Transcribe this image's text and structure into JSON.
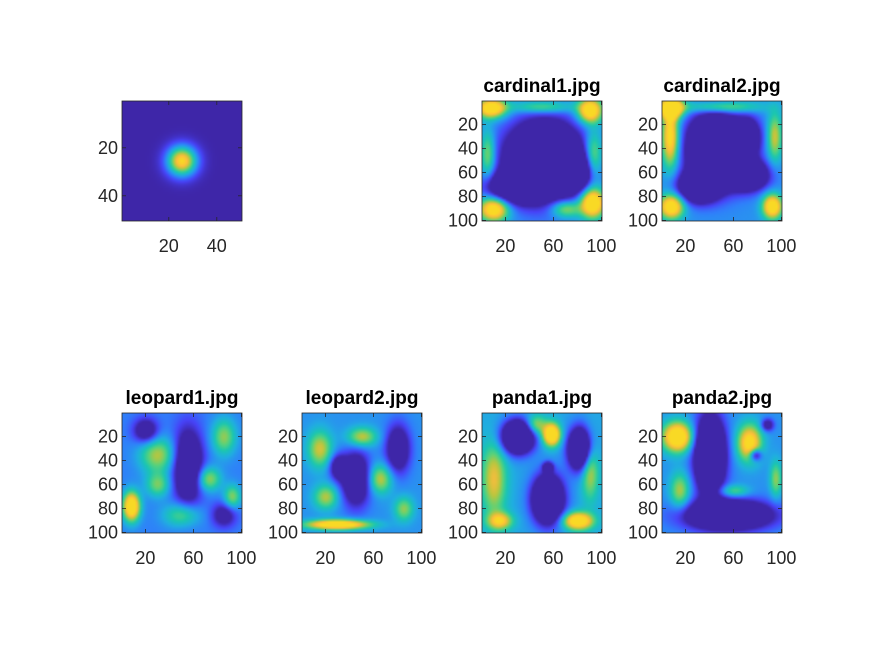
{
  "colormap": [
    "#3e26a8",
    "#4743f8",
    "#2f80fa",
    "#20aee0",
    "#1bc6b0",
    "#58d27b",
    "#b9c63f",
    "#fdbc3c",
    "#f9d925"
  ],
  "chart_data": [
    {
      "type": "heatmap",
      "title": "",
      "xlim": [
        0.5,
        50.5
      ],
      "ylim": [
        0.5,
        50.5
      ],
      "xticks": [
        20,
        40
      ],
      "yticks": [
        20,
        40
      ],
      "xticklabels": [
        "20",
        "40"
      ],
      "yticklabels": [
        "20",
        "40"
      ],
      "blobs": [
        [
          0.5,
          0.5,
          0.12,
          0.12,
          1.0
        ]
      ]
    },
    {
      "type": "heatmap",
      "title": "cardinal1.jpg",
      "xlim": [
        0.5,
        100.5
      ],
      "ylim": [
        0.5,
        100.5
      ],
      "xticks": [
        20,
        60,
        100
      ],
      "yticks": [
        20,
        40,
        60,
        80,
        100
      ],
      "xticklabels": [
        "20",
        "60",
        "100"
      ],
      "yticklabels": [
        "20",
        "40",
        "60",
        "80",
        "100"
      ],
      "blobs": [
        [
          0.08,
          0.06,
          0.12,
          0.08,
          0.9
        ],
        [
          0.9,
          0.08,
          0.1,
          0.1,
          0.9
        ],
        [
          0.92,
          0.85,
          0.1,
          0.12,
          1.0
        ],
        [
          0.1,
          0.9,
          0.12,
          0.1,
          0.9
        ],
        [
          0.7,
          0.9,
          0.12,
          0.07,
          0.5
        ],
        [
          0.93,
          0.45,
          0.07,
          0.2,
          0.5
        ],
        [
          0.05,
          0.45,
          0.06,
          0.2,
          0.45
        ],
        [
          0.5,
          0.05,
          0.25,
          0.05,
          0.4
        ]
      ],
      "holes": [
        [
          0.52,
          0.5,
          0.3,
          0.3,
          1.3
        ],
        [
          0.25,
          0.72,
          0.2,
          0.12,
          0.8
        ],
        [
          0.78,
          0.6,
          0.12,
          0.14,
          0.7
        ]
      ],
      "base": 0.3
    },
    {
      "type": "heatmap",
      "title": "cardinal2.jpg",
      "xlim": [
        0.5,
        100.5
      ],
      "ylim": [
        0.5,
        100.5
      ],
      "xticks": [
        20,
        60,
        100
      ],
      "yticks": [
        20,
        40,
        60,
        80,
        100
      ],
      "xticklabels": [
        "20",
        "60",
        "100"
      ],
      "yticklabels": [
        "20",
        "40",
        "60",
        "80",
        "100"
      ],
      "blobs": [
        [
          0.08,
          0.06,
          0.1,
          0.08,
          1.0
        ],
        [
          0.07,
          0.3,
          0.07,
          0.25,
          0.8
        ],
        [
          0.08,
          0.88,
          0.1,
          0.1,
          0.9
        ],
        [
          0.92,
          0.88,
          0.08,
          0.1,
          0.9
        ],
        [
          0.5,
          0.05,
          0.3,
          0.05,
          0.5
        ],
        [
          0.94,
          0.3,
          0.06,
          0.2,
          0.5
        ]
      ],
      "holes": [
        [
          0.45,
          0.4,
          0.22,
          0.28,
          1.3
        ],
        [
          0.3,
          0.72,
          0.16,
          0.12,
          0.9
        ],
        [
          0.72,
          0.62,
          0.16,
          0.12,
          0.9
        ],
        [
          0.72,
          0.3,
          0.1,
          0.15,
          0.6
        ]
      ],
      "base": 0.3
    },
    {
      "type": "heatmap",
      "title": "leopard1.jpg",
      "xlim": [
        0.5,
        100.5
      ],
      "ylim": [
        0.5,
        100.5
      ],
      "xticks": [
        20,
        60,
        100
      ],
      "yticks": [
        20,
        40,
        60,
        80,
        100
      ],
      "xticklabels": [
        "20",
        "60",
        "100"
      ],
      "yticklabels": [
        "20",
        "40",
        "60",
        "80",
        "100"
      ],
      "blobs": [
        [
          0.08,
          0.78,
          0.07,
          0.12,
          1.0
        ],
        [
          0.3,
          0.35,
          0.15,
          0.15,
          0.5
        ],
        [
          0.72,
          0.55,
          0.1,
          0.1,
          0.5
        ],
        [
          0.85,
          0.2,
          0.1,
          0.15,
          0.45
        ],
        [
          0.5,
          0.85,
          0.15,
          0.1,
          0.4
        ],
        [
          0.3,
          0.6,
          0.1,
          0.1,
          0.4
        ],
        [
          0.92,
          0.7,
          0.07,
          0.1,
          0.45
        ]
      ],
      "holes": [
        [
          0.55,
          0.45,
          0.12,
          0.3,
          0.7
        ],
        [
          0.2,
          0.15,
          0.1,
          0.1,
          0.5
        ],
        [
          0.85,
          0.85,
          0.1,
          0.1,
          0.4
        ]
      ],
      "base": 0.25
    },
    {
      "type": "heatmap",
      "title": "leopard2.jpg",
      "xlim": [
        0.5,
        100.5
      ],
      "ylim": [
        0.5,
        100.5
      ],
      "xticks": [
        20,
        60,
        100
      ],
      "yticks": [
        20,
        40,
        60,
        80,
        100
      ],
      "xticklabels": [
        "20",
        "60",
        "100"
      ],
      "yticklabels": [
        "20",
        "40",
        "60",
        "80",
        "100"
      ],
      "blobs": [
        [
          0.3,
          0.93,
          0.25,
          0.04,
          1.0
        ],
        [
          0.15,
          0.3,
          0.1,
          0.15,
          0.5
        ],
        [
          0.5,
          0.2,
          0.12,
          0.08,
          0.5
        ],
        [
          0.65,
          0.55,
          0.1,
          0.12,
          0.5
        ],
        [
          0.2,
          0.7,
          0.1,
          0.1,
          0.45
        ],
        [
          0.85,
          0.8,
          0.08,
          0.1,
          0.4
        ]
      ],
      "holes": [
        [
          0.45,
          0.55,
          0.12,
          0.22,
          0.7
        ],
        [
          0.8,
          0.3,
          0.1,
          0.2,
          0.6
        ],
        [
          0.3,
          0.45,
          0.07,
          0.1,
          0.5
        ]
      ],
      "base": 0.3
    },
    {
      "type": "heatmap",
      "title": "panda1.jpg",
      "xlim": [
        0.5,
        100.5
      ],
      "ylim": [
        0.5,
        100.5
      ],
      "xticks": [
        20,
        60,
        100
      ],
      "yticks": [
        20,
        40,
        60,
        80,
        100
      ],
      "xticklabels": [
        "20",
        "60",
        "100"
      ],
      "yticklabels": [
        "20",
        "40",
        "60",
        "80",
        "100"
      ],
      "blobs": [
        [
          0.58,
          0.18,
          0.07,
          0.09,
          1.0
        ],
        [
          0.1,
          0.55,
          0.1,
          0.3,
          0.5
        ],
        [
          0.8,
          0.9,
          0.12,
          0.07,
          0.9
        ],
        [
          0.15,
          0.9,
          0.1,
          0.07,
          0.6
        ],
        [
          0.9,
          0.45,
          0.07,
          0.25,
          0.5
        ],
        [
          0.45,
          0.1,
          0.08,
          0.08,
          0.45
        ]
      ],
      "holes": [
        [
          0.3,
          0.2,
          0.13,
          0.13,
          1.2
        ],
        [
          0.82,
          0.3,
          0.1,
          0.17,
          1.1
        ],
        [
          0.55,
          0.72,
          0.13,
          0.2,
          1.1
        ],
        [
          0.55,
          0.45,
          0.04,
          0.04,
          0.6
        ]
      ],
      "base": 0.35
    },
    {
      "type": "heatmap",
      "title": "panda2.jpg",
      "xlim": [
        0.5,
        100.5
      ],
      "ylim": [
        0.5,
        100.5
      ],
      "xticks": [
        20,
        60,
        100
      ],
      "yticks": [
        20,
        40,
        60,
        80,
        100
      ],
      "xticklabels": [
        "20",
        "60",
        "100"
      ],
      "yticklabels": [
        "20",
        "40",
        "60",
        "80",
        "100"
      ],
      "blobs": [
        [
          0.13,
          0.2,
          0.12,
          0.12,
          1.0
        ],
        [
          0.73,
          0.25,
          0.1,
          0.15,
          0.8
        ],
        [
          0.15,
          0.65,
          0.08,
          0.15,
          0.45
        ],
        [
          0.95,
          0.55,
          0.05,
          0.15,
          0.4
        ],
        [
          0.6,
          0.65,
          0.12,
          0.05,
          0.35
        ]
      ],
      "holes": [
        [
          0.4,
          0.35,
          0.12,
          0.3,
          1.2
        ],
        [
          0.55,
          0.85,
          0.35,
          0.12,
          1.0
        ],
        [
          0.78,
          0.35,
          0.05,
          0.05,
          0.6
        ],
        [
          0.88,
          0.1,
          0.05,
          0.05,
          0.5
        ]
      ],
      "base": 0.3
    }
  ]
}
